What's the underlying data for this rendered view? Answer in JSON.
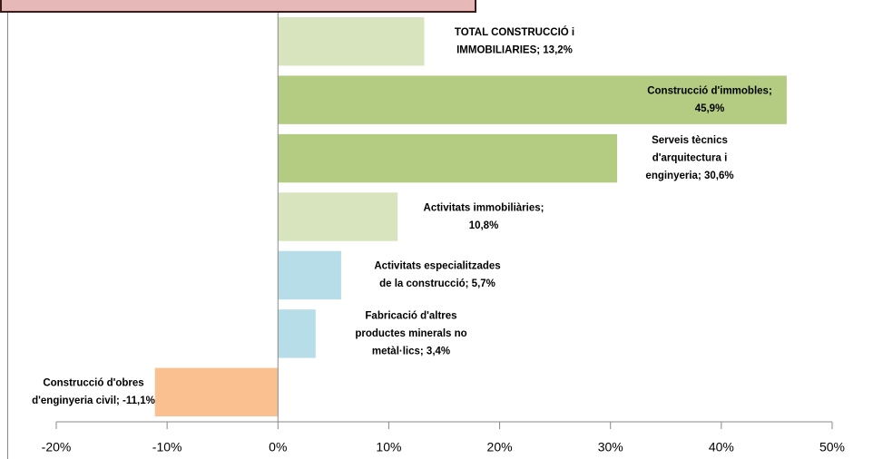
{
  "chart_data": {
    "type": "barh",
    "values": [
      13.2,
      45.9,
      30.6,
      10.8,
      5.7,
      3.4,
      -11.1
    ],
    "value_labels": [
      [
        "TOTAL CONSTRUCCIÓ  i",
        "IMMOBILIARIES;  13,2%"
      ],
      [
        "Construcció d'immobles;",
        "45,9%"
      ],
      [
        "Serveis tècnics",
        "d'arquitectura  i",
        "enginyeria; 30,6%"
      ],
      [
        "Activitats  immobiliàries;",
        "10,8%"
      ],
      [
        "Activitats  especialitzades",
        "de la construcció; 5,7%"
      ],
      [
        "Fabricació d'altres",
        "productes minerals no",
        "metàl·lics;  3,4%"
      ],
      [
        "Construcció d'obres",
        "d'enginyeria civil;  -11,1%"
      ]
    ],
    "colors": [
      "#d7e4bd",
      "#b3cc82",
      "#b3cc82",
      "#d7e4bd",
      "#b7dde8",
      "#b7dde8",
      "#fac090"
    ],
    "xlim": [
      -20,
      50
    ],
    "xticks": [
      {
        "value": -20,
        "label": "-20%"
      },
      {
        "value": -10,
        "label": "-10%"
      },
      {
        "value": 0,
        "label": "0%"
      },
      {
        "value": 10,
        "label": "10%"
      },
      {
        "value": 20,
        "label": "20%"
      },
      {
        "value": 30,
        "label": "30%"
      },
      {
        "value": 40,
        "label": "40%"
      },
      {
        "value": 50,
        "label": "50%"
      }
    ]
  }
}
